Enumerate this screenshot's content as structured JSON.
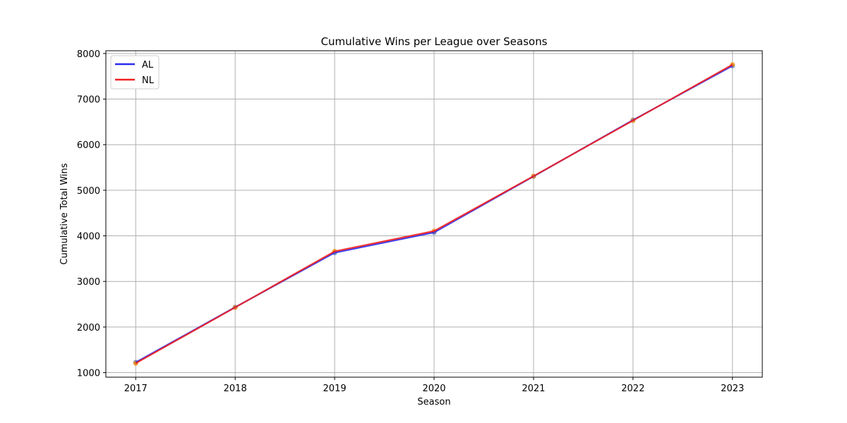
{
  "chart_data": {
    "type": "line",
    "title": "Cumulative Wins per League over Seasons",
    "xlabel": "Season",
    "ylabel": "Cumulative Total Wins",
    "x": [
      2017,
      2018,
      2019,
      2020,
      2021,
      2022,
      2023
    ],
    "xlim": [
      2016.7,
      2023.3
    ],
    "ylim": [
      900,
      8060
    ],
    "yticks": [
      1000,
      2000,
      3000,
      4000,
      5000,
      6000,
      7000,
      8000
    ],
    "grid": true,
    "legend_position": "top-left",
    "series": [
      {
        "name": "AL",
        "line_color": "#2a2af0",
        "marker_color": "#4472c4",
        "values": [
          1225,
          2435,
          3630,
          4075,
          5305,
          6540,
          7730
        ]
      },
      {
        "name": "NL",
        "line_color": "#f02020",
        "marker_color": "#ff8c00",
        "values": [
          1205,
          2430,
          3660,
          4105,
          5310,
          6530,
          7755
        ]
      }
    ]
  }
}
